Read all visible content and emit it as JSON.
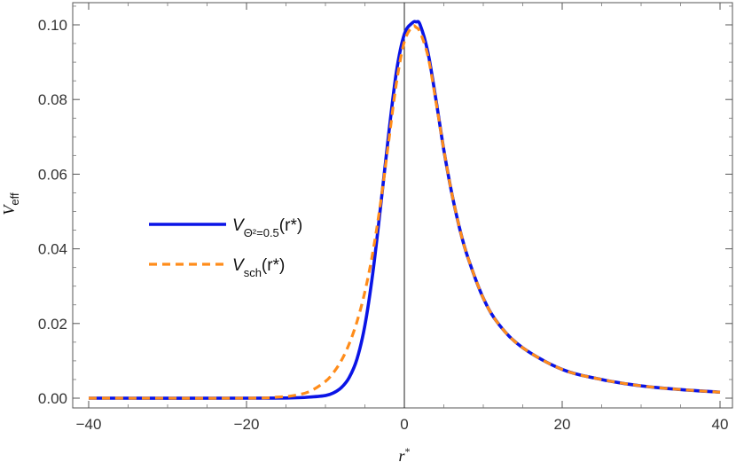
{
  "chart_data": {
    "type": "line",
    "xlabel": "r*",
    "ylabel": "V_eff",
    "xlim": [
      -40,
      40
    ],
    "ylim": [
      0,
      0.105
    ],
    "x_ticks": [
      -40,
      -20,
      0,
      20,
      40
    ],
    "x_tick_labels": [
      "−40",
      "−20",
      "0",
      "20",
      "40"
    ],
    "y_ticks": [
      0.0,
      0.02,
      0.04,
      0.06,
      0.08,
      0.1
    ],
    "y_tick_labels": [
      "0.00",
      "0.02",
      "0.04",
      "0.06",
      "0.08",
      "0.10"
    ],
    "grid": false,
    "legend_position": "left-middle",
    "vertical_line_at_x": 0,
    "series": [
      {
        "name": "V_{Θ²=0.5}(r*)",
        "style": "solid",
        "color": "#0a14e6",
        "x": [
          -40,
          -20,
          -14,
          -12,
          -10,
          -9,
          -8,
          -7,
          -6,
          -5,
          -4,
          -3,
          -2,
          -1,
          0,
          1,
          1.5,
          2,
          3,
          4,
          5,
          6,
          7,
          8,
          10,
          12,
          15,
          20,
          25,
          30,
          35,
          40
        ],
        "y": [
          0.0,
          0.0,
          0.0001,
          0.0003,
          0.0007,
          0.0014,
          0.0028,
          0.0055,
          0.0105,
          0.0195,
          0.0335,
          0.0515,
          0.0705,
          0.0875,
          0.0975,
          0.1005,
          0.1008,
          0.1,
          0.0925,
          0.08,
          0.0665,
          0.055,
          0.0455,
          0.038,
          0.0268,
          0.0197,
          0.0135,
          0.0077,
          0.005,
          0.0033,
          0.0023,
          0.0016
        ]
      },
      {
        "name": "V_sch(r*)",
        "style": "dashed",
        "color": "#ff8c1a",
        "x": [
          -40,
          -20,
          -16,
          -14,
          -12,
          -10,
          -9,
          -8,
          -7,
          -6,
          -5,
          -4,
          -3,
          -2,
          -1,
          0,
          1,
          1.5,
          2,
          3,
          4,
          5,
          6,
          7,
          8,
          10,
          12,
          15,
          20,
          25,
          30,
          35,
          40
        ],
        "y": [
          0.0,
          0.0,
          0.0003,
          0.0007,
          0.0018,
          0.0045,
          0.0068,
          0.01,
          0.0145,
          0.0205,
          0.0285,
          0.039,
          0.0525,
          0.0685,
          0.0845,
          0.0955,
          0.0995,
          0.0993,
          0.098,
          0.0915,
          0.0795,
          0.0665,
          0.055,
          0.0455,
          0.038,
          0.0268,
          0.0197,
          0.0135,
          0.0077,
          0.005,
          0.0033,
          0.0023,
          0.0016
        ]
      }
    ]
  },
  "legend": {
    "entry1": {
      "main": "V",
      "sub": "Θ²=0.5",
      "tail": "(r*)"
    },
    "entry2": {
      "main": "V",
      "sub": "sch",
      "tail": "(r*)"
    }
  }
}
